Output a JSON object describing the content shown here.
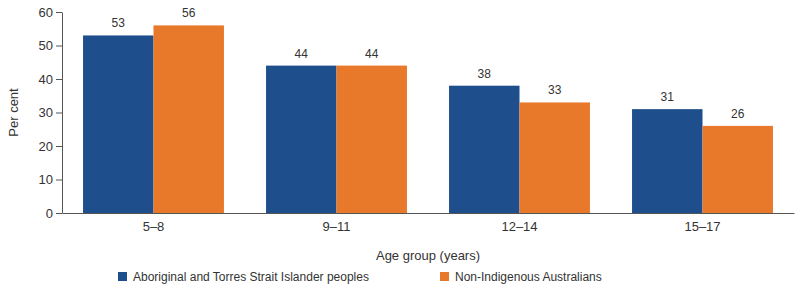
{
  "chart_data": {
    "type": "bar",
    "x_label": "Age group (years)",
    "y_label": "Per cent",
    "categories": [
      "5–8",
      "9–11",
      "12–14",
      "15–17"
    ],
    "series": [
      {
        "name": "Aboriginal and Torres Strait Islander peoples",
        "color": "#1F4E8C",
        "values": [
          53,
          44,
          38,
          31
        ]
      },
      {
        "name": "Non-Indigenous Australians",
        "color": "#E8792B",
        "values": [
          56,
          44,
          33,
          26
        ]
      }
    ],
    "ylim": [
      0,
      60
    ],
    "yticks": [
      0,
      10,
      20,
      30,
      40,
      50,
      60
    ],
    "grid": false,
    "legend": "bottom",
    "data_labels": true
  }
}
